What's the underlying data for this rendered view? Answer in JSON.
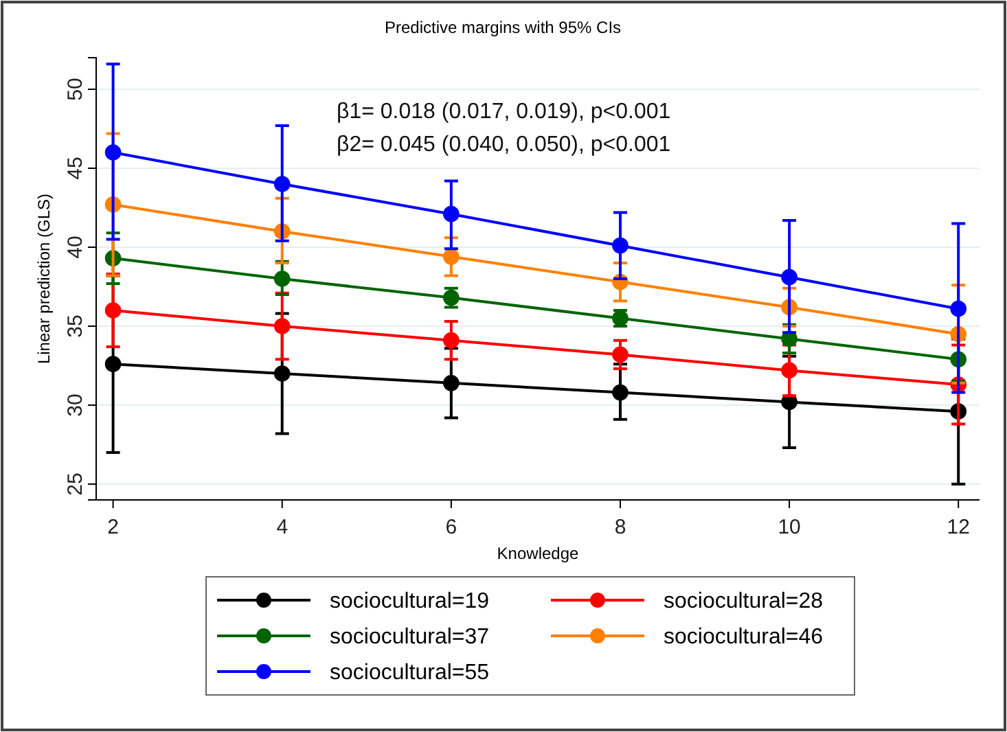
{
  "chart_data": {
    "type": "line",
    "title": "Predictive margins with 95% CIs",
    "xlabel": "Knowledge",
    "ylabel": "Linear prediction (GLS)",
    "x": [
      2,
      4,
      6,
      8,
      10,
      12
    ],
    "xlim": [
      1.8,
      12.25
    ],
    "xticks": [
      2,
      4,
      6,
      8,
      10,
      12
    ],
    "ylim": [
      24,
      52
    ],
    "yticks": [
      25,
      30,
      35,
      40,
      45,
      50
    ],
    "grid": "y",
    "legend": "bottom",
    "marker": "circle",
    "line_style": "solid",
    "annotations": [
      "β1= 0.018 (0.017, 0.019), p<0.001",
      "β2= 0.045 (0.040, 0.050), p<0.001"
    ],
    "series": [
      {
        "name": "sociocultural=19",
        "color": "#000000",
        "values": [
          32.6,
          32.0,
          31.4,
          30.8,
          30.2,
          29.6
        ],
        "errors": [
          [
            27.0,
            38.2
          ],
          [
            28.2,
            35.8
          ],
          [
            29.2,
            33.6
          ],
          [
            29.1,
            32.6
          ],
          [
            27.3,
            33.1
          ],
          [
            25.0,
            34.2
          ]
        ]
      },
      {
        "name": "sociocultural=28",
        "color": "#ff0000",
        "values": [
          36.0,
          35.0,
          34.1,
          33.2,
          32.2,
          31.3
        ],
        "errors": [
          [
            33.7,
            38.3
          ],
          [
            32.9,
            37.1
          ],
          [
            32.9,
            35.3
          ],
          [
            32.3,
            34.1
          ],
          [
            30.6,
            33.8
          ],
          [
            28.8,
            33.8
          ]
        ]
      },
      {
        "name": "sociocultural=37",
        "color": "#006400",
        "values": [
          39.3,
          38.0,
          36.8,
          35.5,
          34.2,
          32.9
        ],
        "errors": [
          [
            37.7,
            40.9
          ],
          [
            37.0,
            39.1
          ],
          [
            36.2,
            37.4
          ],
          [
            35.0,
            36.0
          ],
          [
            33.3,
            35.1
          ],
          [
            31.5,
            34.3
          ]
        ]
      },
      {
        "name": "sociocultural=46",
        "color": "#ff8000",
        "values": [
          42.7,
          41.0,
          39.4,
          37.8,
          36.2,
          34.5
        ],
        "errors": [
          [
            38.2,
            47.2
          ],
          [
            39.0,
            43.1
          ],
          [
            38.2,
            40.6
          ],
          [
            36.6,
            39.0
          ],
          [
            35.0,
            37.4
          ],
          [
            31.4,
            37.6
          ]
        ]
      },
      {
        "name": "sociocultural=55",
        "color": "#0000ff",
        "values": [
          46.0,
          44.0,
          42.1,
          40.1,
          38.1,
          36.1
        ],
        "errors": [
          [
            40.5,
            51.6
          ],
          [
            40.4,
            47.7
          ],
          [
            39.9,
            44.2
          ],
          [
            38.0,
            42.2
          ],
          [
            34.6,
            41.7
          ],
          [
            30.8,
            41.5
          ]
        ]
      }
    ]
  }
}
